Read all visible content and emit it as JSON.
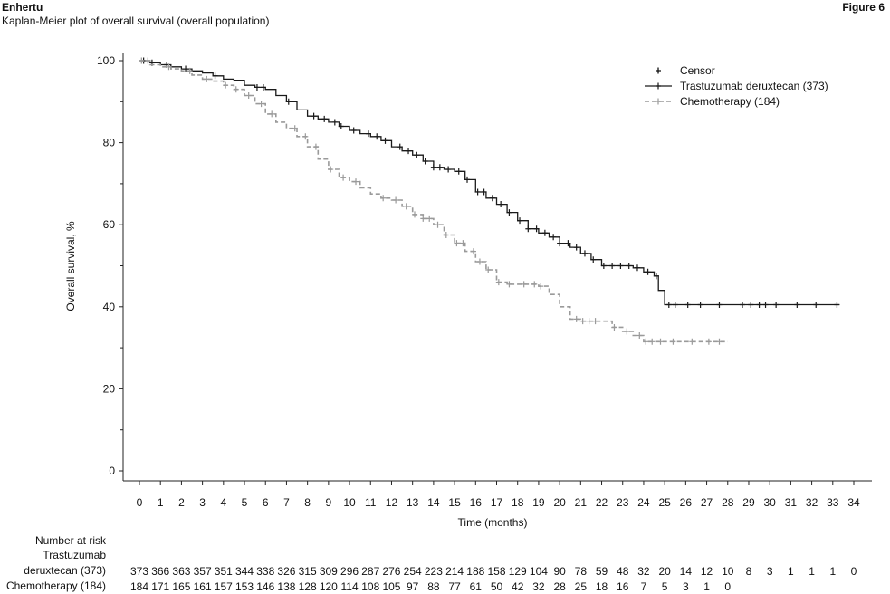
{
  "header": {
    "brand": "Enhertu",
    "subtitle": "Kaplan-Meier plot of overall survival (overall population)",
    "figure_label": "Figure 6"
  },
  "risk_table": {
    "heading": "Number at risk",
    "row1_label_line1": "Trastuzumab",
    "row1_label_line2": "deruxtecan (373)",
    "row2_label": "Chemotherapy (184)"
  },
  "colors": {
    "treatment": "#1a1a1a",
    "chemo": "#9a9a9a",
    "axis": "#222222"
  },
  "chart_data": {
    "type": "line",
    "title": "",
    "xlabel": "Time (months)",
    "ylabel": "Overall survival, %",
    "xlim": [
      0,
      34
    ],
    "ylim": [
      0,
      100
    ],
    "xticks": [
      0,
      1,
      2,
      3,
      4,
      5,
      6,
      7,
      8,
      9,
      10,
      11,
      12,
      13,
      14,
      15,
      16,
      17,
      18,
      19,
      20,
      21,
      22,
      23,
      24,
      25,
      26,
      27,
      28,
      29,
      30,
      31,
      32,
      33,
      34
    ],
    "yticks": [
      0,
      20,
      40,
      60,
      80,
      100
    ],
    "legend": {
      "position": "top-right",
      "censor_label": "Censor",
      "entries": [
        "Trastuzumab deruxtecan (373)",
        "Chemotherapy (184)"
      ]
    },
    "series": [
      {
        "name": "Trastuzumab deruxtecan (373)",
        "style": "solid",
        "x": [
          0,
          0.5,
          1,
          1.5,
          2,
          2.5,
          3,
          3.5,
          4,
          4.5,
          5,
          5.5,
          6,
          6.5,
          7,
          7.5,
          8,
          8.5,
          9,
          9.5,
          10,
          10.5,
          11,
          11.5,
          12,
          12.5,
          13,
          13.5,
          14,
          14.5,
          15,
          15.5,
          16,
          16.5,
          17,
          17.5,
          18,
          18.5,
          19,
          19.5,
          20,
          20.5,
          21,
          21.5,
          22,
          22.5,
          23,
          23.5,
          24,
          24.5,
          24.7,
          25,
          26,
          27,
          28,
          29,
          30,
          31,
          32,
          33.3
        ],
        "y": [
          100,
          99.5,
          99,
          98.5,
          98,
          97.5,
          97,
          96.3,
          95.5,
          95.2,
          94,
          93.5,
          93,
          91.5,
          90,
          88,
          86.5,
          85.8,
          85,
          84,
          83,
          82.2,
          81.5,
          80.5,
          79,
          78,
          77,
          75.5,
          74,
          73.5,
          73,
          71,
          68,
          66.5,
          65,
          63,
          61,
          59,
          58,
          57,
          55.5,
          54.5,
          53,
          51.5,
          50,
          50,
          50,
          49.5,
          48.5,
          47.5,
          44,
          40.5,
          40.5,
          40.5,
          40.5,
          40.5,
          40.5,
          40.5,
          40.5,
          40.5
        ],
        "censor_x": [
          0.2,
          0.6,
          1.3,
          2.2,
          3.6,
          5.6,
          5.9,
          7.1,
          8.3,
          8.8,
          9.3,
          9.6,
          10.2,
          10.9,
          11.3,
          11.7,
          12.4,
          12.8,
          13.2,
          13.6,
          14,
          14.3,
          14.7,
          15.2,
          15.6,
          16.1,
          16.4,
          16.8,
          17.2,
          17.6,
          18.1,
          18.5,
          18.9,
          19.3,
          19.7,
          20,
          20.4,
          20.8,
          21.2,
          21.6,
          22.1,
          22.5,
          22.9,
          23.3,
          23.7,
          24.2,
          24.6,
          25.2,
          25.5,
          26.1,
          26.7,
          27.6,
          28.7,
          29.1,
          29.5,
          29.8,
          30.3,
          31.3,
          32.2,
          33.2
        ],
        "risk": [
          373,
          366,
          363,
          357,
          351,
          344,
          338,
          326,
          315,
          309,
          296,
          287,
          276,
          254,
          223,
          214,
          188,
          158,
          129,
          104,
          90,
          78,
          59,
          48,
          32,
          20,
          14,
          12,
          10,
          8,
          3,
          1,
          1,
          1,
          0
        ]
      },
      {
        "name": "Chemotherapy (184)",
        "style": "dashed",
        "x": [
          0,
          0.5,
          1,
          1.5,
          2,
          2.5,
          3,
          3.5,
          4,
          4.5,
          5,
          5.5,
          6,
          6.5,
          7,
          7.5,
          8,
          8.5,
          9,
          9.5,
          10,
          10.5,
          11,
          11.5,
          12,
          12.5,
          13,
          13.5,
          14,
          14.5,
          15,
          15.5,
          16,
          16.5,
          17,
          17.5,
          18,
          18.5,
          19,
          19.5,
          20,
          20.5,
          21,
          21.5,
          22,
          22.5,
          23,
          23.5,
          24,
          24.5,
          25,
          26,
          27,
          28
        ],
        "y": [
          100,
          99,
          98.5,
          98,
          97.5,
          96.5,
          95.5,
          95,
          94,
          93,
          91.5,
          89.5,
          87,
          85,
          83.5,
          81.5,
          79,
          76,
          73.5,
          71.5,
          70.5,
          69,
          67.5,
          66.5,
          66,
          64.5,
          62.5,
          61.5,
          60,
          57.5,
          55.5,
          53.5,
          51,
          49,
          46,
          45.5,
          45.5,
          45.5,
          45,
          43,
          40,
          37,
          36.5,
          36.5,
          36.5,
          35,
          34,
          33,
          31.5,
          31.5,
          31.5,
          31.5,
          31.5,
          31.5
        ],
        "censor_x": [
          0.1,
          0.4,
          1.4,
          2.4,
          3.2,
          4.1,
          4.6,
          5.2,
          5.8,
          6.3,
          7.4,
          7.9,
          8.4,
          9.1,
          9.7,
          10.3,
          11.6,
          12.2,
          12.7,
          13.1,
          13.5,
          13.8,
          14.2,
          14.6,
          15.1,
          15.4,
          15.9,
          16.2,
          16.6,
          17.1,
          17.6,
          18.3,
          18.8,
          19.1,
          20.8,
          21.1,
          21.4,
          21.7,
          22.6,
          23.2,
          23.8,
          24.1,
          24.4,
          24.8,
          25.4,
          26.3,
          27.1,
          27.6
        ],
        "risk": [
          184,
          171,
          165,
          161,
          157,
          153,
          146,
          138,
          128,
          120,
          114,
          108,
          105,
          97,
          88,
          77,
          61,
          50,
          42,
          32,
          28,
          25,
          18,
          16,
          7,
          5,
          3,
          1,
          0
        ]
      }
    ]
  }
}
